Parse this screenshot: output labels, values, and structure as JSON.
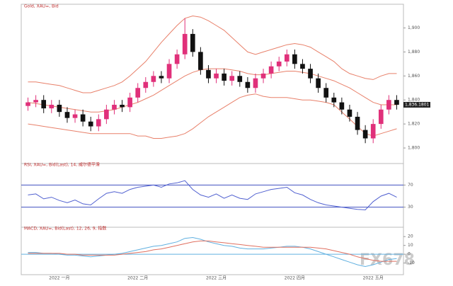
{
  "chart_data": [
    {
      "type": "candlestick",
      "title": "Gold, XAU=, Bid",
      "up_color": "#e0307a",
      "down_color": "#111111",
      "band_color": "#e8806a",
      "last_label": "1,836.1801",
      "categories": [
        null,
        null,
        null,
        null,
        "2022 一月",
        null,
        null,
        null,
        null,
        null,
        null,
        null,
        null,
        null,
        "2022 二月",
        null,
        null,
        null,
        null,
        null,
        null,
        null,
        null,
        null,
        "2022 三月",
        null,
        null,
        null,
        null,
        null,
        null,
        null,
        null,
        null,
        "2022 四月",
        null,
        null,
        null,
        null,
        null,
        null,
        null,
        null,
        null,
        "2022 五月",
        null,
        null,
        null
      ],
      "open": [
        1835,
        1838,
        1840,
        1833,
        1836,
        1830,
        1825,
        1828,
        1822,
        1818,
        1824,
        1832,
        1836,
        1834,
        1842,
        1850,
        1855,
        1860,
        1858,
        1870,
        1878,
        1895,
        1880,
        1865,
        1858,
        1862,
        1856,
        1860,
        1855,
        1850,
        1858,
        1862,
        1868,
        1872,
        1878,
        1870,
        1866,
        1858,
        1850,
        1842,
        1838,
        1832,
        1826,
        1815,
        1808,
        1820,
        1832,
        1840
      ],
      "high": [
        1842,
        1844,
        1844,
        1840,
        1840,
        1834,
        1832,
        1832,
        1826,
        1828,
        1836,
        1840,
        1840,
        1846,
        1854,
        1859,
        1864,
        1864,
        1874,
        1882,
        1908,
        1899,
        1884,
        1869,
        1866,
        1866,
        1864,
        1864,
        1859,
        1862,
        1866,
        1872,
        1876,
        1882,
        1882,
        1874,
        1870,
        1862,
        1854,
        1846,
        1842,
        1836,
        1830,
        1819,
        1824,
        1836,
        1844,
        1844
      ],
      "low": [
        1831,
        1834,
        1829,
        1829,
        1826,
        1821,
        1821,
        1818,
        1814,
        1814,
        1820,
        1828,
        1830,
        1830,
        1838,
        1846,
        1851,
        1854,
        1854,
        1866,
        1874,
        1876,
        1861,
        1854,
        1854,
        1852,
        1852,
        1851,
        1846,
        1846,
        1854,
        1858,
        1864,
        1868,
        1866,
        1862,
        1854,
        1846,
        1838,
        1834,
        1828,
        1822,
        1811,
        1804,
        1804,
        1816,
        1828,
        1832
      ],
      "close": [
        1838,
        1840,
        1833,
        1836,
        1830,
        1825,
        1828,
        1822,
        1818,
        1824,
        1832,
        1836,
        1834,
        1842,
        1850,
        1855,
        1860,
        1858,
        1870,
        1878,
        1895,
        1880,
        1865,
        1858,
        1862,
        1856,
        1860,
        1855,
        1850,
        1858,
        1862,
        1868,
        1872,
        1878,
        1870,
        1866,
        1858,
        1850,
        1842,
        1838,
        1832,
        1826,
        1815,
        1808,
        1820,
        1832,
        1840,
        1836
      ],
      "bands": [
        {
          "name": "upper",
          "values": [
            1855,
            1855,
            1854,
            1853,
            1852,
            1850,
            1848,
            1846,
            1846,
            1848,
            1850,
            1852,
            1855,
            1860,
            1866,
            1872,
            1880,
            1888,
            1895,
            1902,
            1908,
            1910,
            1909,
            1906,
            1902,
            1898,
            1892,
            1886,
            1880,
            1878,
            1880,
            1882,
            1884,
            1886,
            1887,
            1886,
            1884,
            1880,
            1876,
            1872,
            1866,
            1862,
            1860,
            1858,
            1857,
            1860,
            1862,
            1862
          ]
        },
        {
          "name": "middle",
          "values": [
            1838,
            1837,
            1836,
            1835,
            1834,
            1833,
            1832,
            1831,
            1830,
            1830,
            1831,
            1832,
            1834,
            1836,
            1838,
            1841,
            1844,
            1848,
            1852,
            1856,
            1860,
            1863,
            1865,
            1866,
            1866,
            1866,
            1865,
            1864,
            1862,
            1861,
            1861,
            1862,
            1863,
            1864,
            1864,
            1863,
            1862,
            1860,
            1858,
            1856,
            1853,
            1850,
            1846,
            1842,
            1838,
            1836,
            1836,
            1836
          ]
        },
        {
          "name": "lower",
          "values": [
            1820,
            1819,
            1818,
            1817,
            1816,
            1815,
            1814,
            1813,
            1812,
            1812,
            1812,
            1812,
            1812,
            1812,
            1810,
            1810,
            1808,
            1808,
            1809,
            1810,
            1812,
            1816,
            1821,
            1826,
            1830,
            1834,
            1838,
            1842,
            1844,
            1845,
            1843,
            1842,
            1842,
            1842,
            1841,
            1840,
            1840,
            1839,
            1838,
            1836,
            1830,
            1824,
            1818,
            1812,
            1810,
            1812,
            1814,
            1816
          ]
        }
      ],
      "ylim": [
        1790,
        1915
      ],
      "yticks": [
        {
          "value": 1800,
          "label": "1,800"
        },
        {
          "value": 1820,
          "label": "1,820"
        },
        {
          "value": 1840,
          "label": "1,840"
        },
        {
          "value": 1860,
          "label": "1,860"
        },
        {
          "value": 1880,
          "label": "1,880"
        },
        {
          "value": 1900,
          "label": "1,900"
        }
      ]
    },
    {
      "type": "line",
      "title": "RSI, XAU=, Bid(Last), 14, 威尔德平滑",
      "levels": [
        30,
        70
      ],
      "level_color": "#4050c0",
      "series": [
        {
          "color": "#5060d0",
          "values": [
            52,
            54,
            45,
            48,
            42,
            38,
            43,
            36,
            34,
            45,
            55,
            58,
            55,
            62,
            66,
            68,
            70,
            66,
            72,
            74,
            78,
            62,
            52,
            48,
            54,
            46,
            52,
            46,
            44,
            54,
            58,
            62,
            64,
            66,
            56,
            52,
            44,
            38,
            34,
            32,
            30,
            28,
            26,
            25,
            40,
            50,
            55,
            48
          ]
        }
      ],
      "ylim": [
        0,
        100
      ],
      "yticks": [
        30,
        70
      ]
    },
    {
      "type": "line",
      "title": "MACD, XAU=, Bid(Last), 12, 26, 9, 指数",
      "levels": [
        0
      ],
      "level_color": "#60b0e0",
      "series": [
        {
          "color": "#60b0e0",
          "values": [
            2,
            2,
            1,
            1,
            0,
            -1,
            -1,
            -2,
            -3,
            -2,
            -1,
            0,
            1,
            3,
            5,
            7,
            9,
            10,
            12,
            14,
            18,
            19,
            17,
            14,
            12,
            10,
            9,
            7,
            6,
            6,
            6,
            7,
            8,
            9,
            9,
            8,
            6,
            3,
            0,
            -3,
            -6,
            -9,
            -12,
            -14,
            -12,
            -9,
            -6,
            -5
          ]
        },
        {
          "color": "#e07060",
          "values": [
            1,
            1,
            1,
            1,
            1,
            0,
            0,
            -1,
            -1,
            -1,
            -1,
            -1,
            0,
            1,
            2,
            3,
            5,
            6,
            8,
            10,
            12,
            14,
            15,
            15,
            14,
            13,
            12,
            11,
            10,
            9,
            8,
            8,
            8,
            8,
            8,
            8,
            8,
            7,
            6,
            4,
            2,
            0,
            -3,
            -5,
            -7,
            -8,
            -8,
            -8
          ]
        }
      ],
      "ylim": [
        -20,
        25
      ],
      "yticks": [
        -10,
        0,
        10,
        20
      ]
    }
  ],
  "watermark": "FX678"
}
